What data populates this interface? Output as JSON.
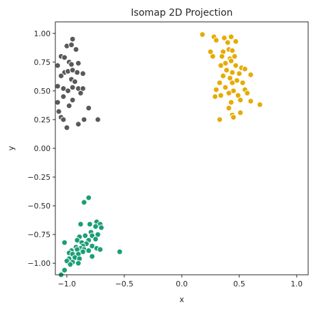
{
  "chart_data": {
    "type": "scatter",
    "title": "Isomap 2D Projection",
    "xlabel": "x",
    "ylabel": "y",
    "xlim": [
      -1.1,
      1.1
    ],
    "ylim": [
      -1.1,
      1.1
    ],
    "xticks": [
      -1.0,
      -0.5,
      0.0,
      0.5,
      1.0
    ],
    "xtick_labels": [
      "−1.0",
      "−0.5",
      "0.0",
      "0.5",
      "1.0"
    ],
    "yticks": [
      1.0,
      0.75,
      0.5,
      0.25,
      0.0,
      -0.25,
      -0.5,
      -0.75,
      -1.0
    ],
    "ytick_labels": [
      "1.00",
      "0.75",
      "0.50",
      "0.25",
      "0.00",
      "−0.25",
      "−0.50",
      "−0.75",
      "−1.00"
    ],
    "grid": false,
    "series": [
      {
        "color": "#595959",
        "points": [
          [
            -0.95,
            0.95
          ],
          [
            -1.0,
            0.89
          ],
          [
            -0.96,
            0.9
          ],
          [
            -0.92,
            0.86
          ],
          [
            -1.05,
            0.8
          ],
          [
            -1.02,
            0.79
          ],
          [
            -0.98,
            0.75
          ],
          [
            -0.96,
            0.73
          ],
          [
            -0.9,
            0.74
          ],
          [
            -1.08,
            0.72
          ],
          [
            -1.02,
            0.66
          ],
          [
            -0.99,
            0.67
          ],
          [
            -0.95,
            0.68
          ],
          [
            -0.91,
            0.66
          ],
          [
            -0.86,
            0.65
          ],
          [
            -1.05,
            0.63
          ],
          [
            -0.96,
            0.6
          ],
          [
            -0.93,
            0.58
          ],
          [
            -1.08,
            0.54
          ],
          [
            -1.03,
            0.52
          ],
          [
            -0.99,
            0.5
          ],
          [
            -0.95,
            0.53
          ],
          [
            -0.9,
            0.52
          ],
          [
            -0.86,
            0.52
          ],
          [
            -0.88,
            0.48
          ],
          [
            -1.03,
            0.45
          ],
          [
            -0.95,
            0.42
          ],
          [
            -1.08,
            0.4
          ],
          [
            -0.81,
            0.35
          ],
          [
            -1.07,
            0.32
          ],
          [
            -0.98,
            0.37
          ],
          [
            -1.05,
            0.27
          ],
          [
            -1.03,
            0.25
          ],
          [
            -0.85,
            0.25
          ],
          [
            -0.73,
            0.25
          ],
          [
            -0.9,
            0.21
          ],
          [
            -1.0,
            0.18
          ]
        ]
      },
      {
        "color": "#e6ab02",
        "points": [
          [
            0.18,
            0.99
          ],
          [
            0.28,
            0.97
          ],
          [
            0.37,
            0.96
          ],
          [
            0.43,
            0.97
          ],
          [
            0.47,
            0.93
          ],
          [
            0.3,
            0.94
          ],
          [
            0.4,
            0.92
          ],
          [
            0.25,
            0.84
          ],
          [
            0.41,
            0.86
          ],
          [
            0.44,
            0.85
          ],
          [
            0.36,
            0.84
          ],
          [
            0.27,
            0.8
          ],
          [
            0.35,
            0.8
          ],
          [
            0.42,
            0.78
          ],
          [
            0.46,
            0.8
          ],
          [
            0.43,
            0.76
          ],
          [
            0.38,
            0.74
          ],
          [
            0.34,
            0.72
          ],
          [
            0.47,
            0.72
          ],
          [
            0.52,
            0.7
          ],
          [
            0.55,
            0.69
          ],
          [
            0.39,
            0.68
          ],
          [
            0.44,
            0.66
          ],
          [
            0.5,
            0.65
          ],
          [
            0.6,
            0.64
          ],
          [
            0.36,
            0.63
          ],
          [
            0.42,
            0.61
          ],
          [
            0.48,
            0.59
          ],
          [
            0.53,
            0.57
          ],
          [
            0.44,
            0.57
          ],
          [
            0.33,
            0.57
          ],
          [
            0.38,
            0.53
          ],
          [
            0.55,
            0.51
          ],
          [
            0.3,
            0.51
          ],
          [
            0.45,
            0.5
          ],
          [
            0.41,
            0.48
          ],
          [
            0.57,
            0.48
          ],
          [
            0.49,
            0.46
          ],
          [
            0.34,
            0.46
          ],
          [
            0.29,
            0.45
          ],
          [
            0.51,
            0.42
          ],
          [
            0.6,
            0.41
          ],
          [
            0.43,
            0.4
          ],
          [
            0.41,
            0.35
          ],
          [
            0.68,
            0.38
          ],
          [
            0.51,
            0.31
          ],
          [
            0.44,
            0.29
          ],
          [
            0.45,
            0.27
          ],
          [
            0.33,
            0.25
          ]
        ]
      },
      {
        "color": "#1b9e77",
        "points": [
          [
            -0.81,
            -0.43
          ],
          [
            -0.85,
            -0.47
          ],
          [
            -0.74,
            -0.64
          ],
          [
            -0.71,
            -0.66
          ],
          [
            -0.8,
            -0.66
          ],
          [
            -0.88,
            -0.66
          ],
          [
            -0.75,
            -0.68
          ],
          [
            -0.7,
            -0.69
          ],
          [
            -0.79,
            -0.73
          ],
          [
            -0.73,
            -0.75
          ],
          [
            -0.84,
            -0.76
          ],
          [
            -0.89,
            -0.77
          ],
          [
            -0.78,
            -0.76
          ],
          [
            -0.91,
            -0.8
          ],
          [
            -0.81,
            -0.8
          ],
          [
            -0.75,
            -0.79
          ],
          [
            -0.87,
            -0.82
          ],
          [
            -0.83,
            -0.83
          ],
          [
            -1.02,
            -0.82
          ],
          [
            -0.78,
            -0.85
          ],
          [
            -0.86,
            -0.85
          ],
          [
            -0.92,
            -0.86
          ],
          [
            -0.88,
            -0.87
          ],
          [
            -0.74,
            -0.87
          ],
          [
            -0.71,
            -0.88
          ],
          [
            -0.91,
            -0.88
          ],
          [
            -0.96,
            -0.89
          ],
          [
            -0.85,
            -0.88
          ],
          [
            -0.81,
            -0.89
          ],
          [
            -0.86,
            -0.9
          ],
          [
            -0.54,
            -0.9
          ],
          [
            -0.98,
            -0.91
          ],
          [
            -0.95,
            -0.92
          ],
          [
            -0.9,
            -0.92
          ],
          [
            -0.78,
            -0.94
          ],
          [
            -0.93,
            -0.95
          ],
          [
            -0.98,
            -0.96
          ],
          [
            -0.89,
            -0.96
          ],
          [
            -1.0,
            -0.98
          ],
          [
            -0.95,
            -0.99
          ],
          [
            -0.97,
            -1.01
          ],
          [
            -1.02,
            -1.06
          ],
          [
            -0.9,
            -1.0
          ],
          [
            -1.05,
            -1.1
          ]
        ]
      }
    ]
  }
}
